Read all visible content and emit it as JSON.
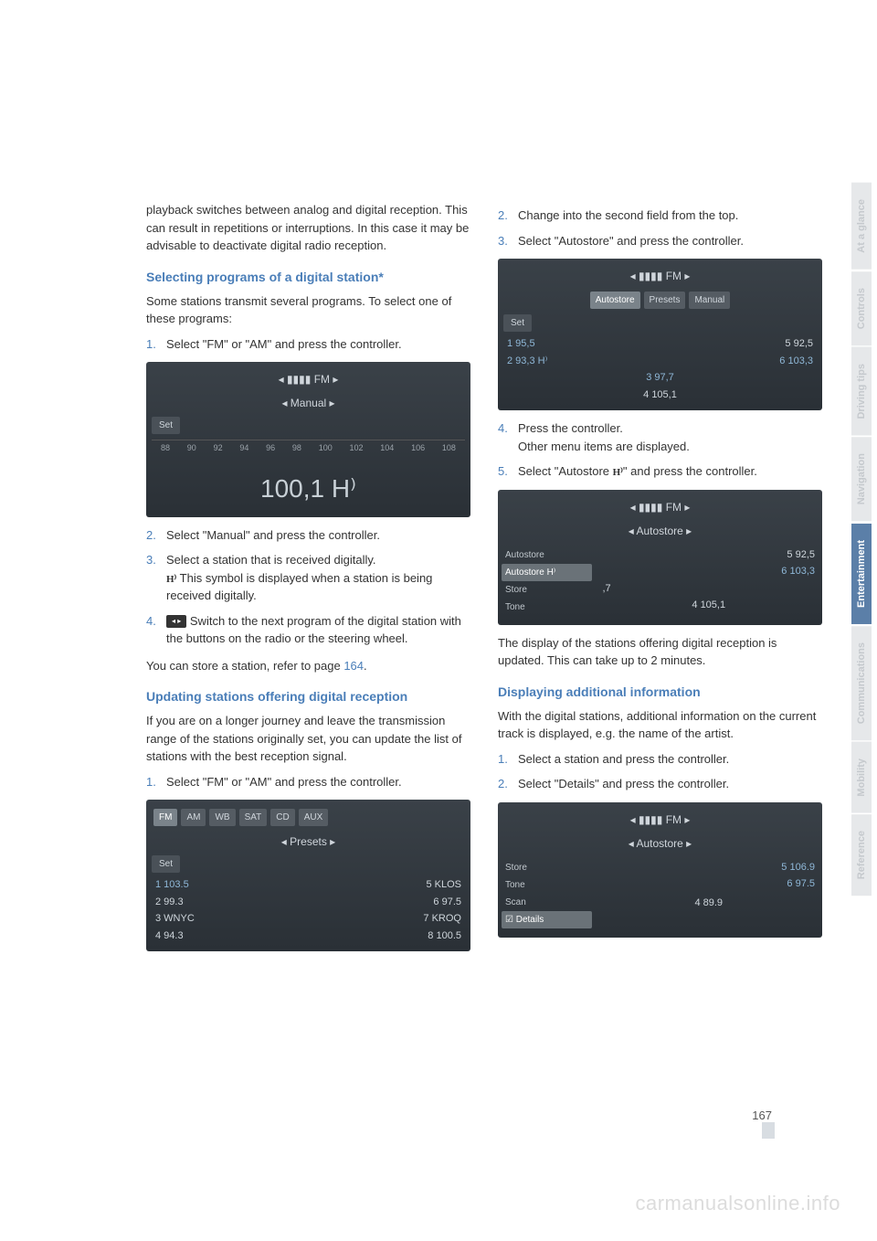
{
  "colors": {
    "heading_blue": "#4a7eb8",
    "body_text": "#333333",
    "screenshot_bg_top": "#3a4148",
    "screenshot_bg_bottom": "#2a3036",
    "screenshot_text": "#cfd6dc",
    "tab_inactive_text": "#c5c9cd",
    "tab_inactive_bg": "#e6e8ea",
    "tab_active_bg": "#5b7fa8",
    "watermark": "#dcdcdc"
  },
  "left_col": {
    "intro": "playback switches between analog and digital reception. This can result in repetitions or interruptions. In this case it may be advisable to deactivate digital radio reception.",
    "h1": "Selecting programs of a digital station*",
    "p1": "Some stations transmit several programs. To select one of these programs:",
    "step1_num": "1.",
    "step1": "Select \"FM\" or \"AM\" and press the controller.",
    "ss1": {
      "header": "◂  ▮▮▮▮  FM  ▸",
      "subheader": "◂ Manual ▸",
      "set": "Set",
      "scale": [
        "88",
        "90",
        "92",
        "94",
        "96",
        "98",
        "100",
        "102",
        "104",
        "106",
        "108"
      ],
      "freq": "100,1 H⁾"
    },
    "step2_num": "2.",
    "step2": "Select \"Manual\" and press the controller.",
    "step3_num": "3.",
    "step3a": "Select a station that is received digitally.",
    "step3b": " This symbol is displayed when a station is being received digitally.",
    "hd_symbol": "H⁾",
    "step4_num": "4.",
    "step4": "Switch to the next program of the digital station with the buttons on the radio or the steering wheel.",
    "btn_icon": "◂   ▸",
    "p_store": "You can store a station, refer to page ",
    "p_store_link": "164",
    "p_store_end": ".",
    "h2": "Updating stations offering digital reception",
    "p2": "If you are on a longer journey and leave the transmission range of the stations originally set, you can update the list of stations with the best reception signal.",
    "step_u1_num": "1.",
    "step_u1": "Select \"FM\" or \"AM\" and press the controller.",
    "ss2": {
      "tabs": [
        "FM",
        "AM",
        "WB",
        "SAT",
        "CD",
        "AUX"
      ],
      "active_tab": 0,
      "subheader": "◂ Presets ▸",
      "set": "Set",
      "rows": [
        {
          "l": "1 103.5",
          "r": "5 KLOS"
        },
        {
          "l": "2 99.3",
          "r": "6 97.5"
        },
        {
          "l": "3 WNYC",
          "r": "7 KROQ"
        },
        {
          "l": "4 94.3",
          "r": "8 100.5"
        }
      ]
    }
  },
  "right_col": {
    "step2_num": "2.",
    "step2": "Change into the second field from the top.",
    "step3_num": "3.",
    "step3": "Select \"Autostore\" and press the controller.",
    "ss3": {
      "header": "◂  ▮▮▮▮  FM  ▸",
      "tabs": [
        "Autostore",
        "Presets",
        "Manual"
      ],
      "active_tab": 0,
      "set": "Set",
      "rows": [
        {
          "l": "1 95,5",
          "r": "5 92,5"
        },
        {
          "l": "2 93,3 H⁾",
          "r": "6 103,3"
        },
        {
          "l": "3 97,7",
          "r": ""
        },
        {
          "l": "4 105,1",
          "r": ""
        }
      ]
    },
    "step4_num": "4.",
    "step4a": "Press the controller.",
    "step4b": "Other menu items are displayed.",
    "step5_num": "5.",
    "step5a": "Select \"Autostore ",
    "step5_hd": "H⁾",
    "step5b": "\" and press the controller.",
    "ss4": {
      "header": "◂  ▮▮▮▮  FM  ▸",
      "subheader": "◂ Autostore ▸",
      "menu": [
        "Autostore",
        "Autostore H⁾",
        "Store",
        "Tone"
      ],
      "selected": 1,
      "rows": [
        {
          "l": "",
          "r": "5 92,5"
        },
        {
          "l": "",
          "r": "6 103,3"
        },
        {
          "l": ",7",
          "r": ""
        },
        {
          "l": "4 105,1",
          "r": ""
        }
      ]
    },
    "p_after": "The display of the stations offering digital reception is updated. This can take up to 2 minutes.",
    "h3": "Displaying additional information",
    "p3": "With the digital stations, additional information on the current track is displayed, e.g. the name of the artist.",
    "d_step1_num": "1.",
    "d_step1": "Select a station and press the controller.",
    "d_step2_num": "2.",
    "d_step2": "Select \"Details\" and press the controller.",
    "ss5": {
      "header": "◂  ▮▮▮▮  FM  ▸",
      "subheader": "◂ Autostore ▸",
      "menu": [
        "Store",
        "Tone",
        "Scan",
        "☑ Details"
      ],
      "selected": 3,
      "rows": [
        {
          "l": "",
          "r": "5 106.9"
        },
        {
          "l": "",
          "r": "6 97.5"
        },
        {
          "l": "",
          "r": ""
        },
        {
          "l": "4 89.9",
          "r": ""
        }
      ]
    }
  },
  "side_tabs": [
    {
      "label": "At a glance",
      "active": false
    },
    {
      "label": "Controls",
      "active": false
    },
    {
      "label": "Driving tips",
      "active": false
    },
    {
      "label": "Navigation",
      "active": false
    },
    {
      "label": "Entertainment",
      "active": true
    },
    {
      "label": "Communications",
      "active": false
    },
    {
      "label": "Mobility",
      "active": false
    },
    {
      "label": "Reference",
      "active": false
    }
  ],
  "page_number": "167",
  "watermark": "carmanualsonline.info"
}
